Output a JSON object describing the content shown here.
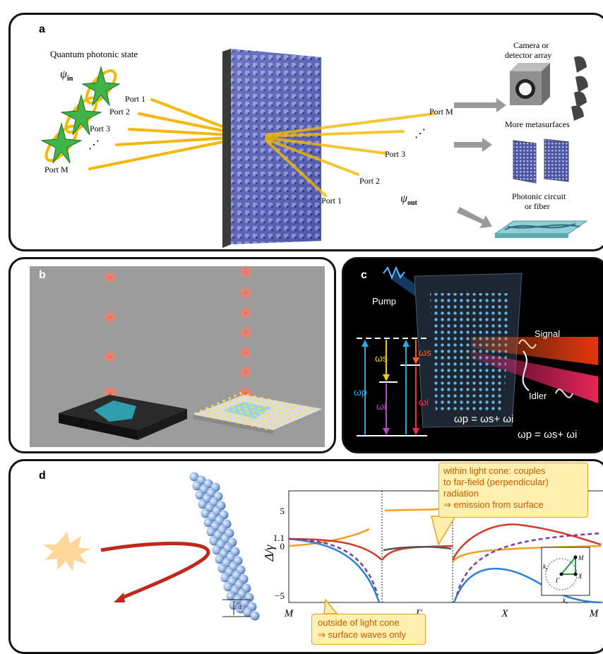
{
  "panel_a": {
    "label": "a",
    "quantum_state": "Quantum photonic state",
    "psi_in": "ψ",
    "psi_in_sub": "in",
    "ports_left": [
      "Port 1",
      "Port 2",
      "Port 3",
      "⋰",
      "Port M"
    ],
    "ports_right": [
      "Port M",
      "⋰",
      "Port 3",
      "Port 2",
      "Port 1"
    ],
    "psi_out": "ψ",
    "psi_out_sub": "out",
    "camera_label_1": "Camera or",
    "camera_label_2": "detector array",
    "more_metasurfaces": "More metasurfaces",
    "photonic_circuit_1": "Photonic circuit",
    "photonic_circuit_2": "or fiber"
  },
  "panel_b": {
    "label": "b"
  },
  "panel_c": {
    "label": "c",
    "pump": "Pump",
    "signal": "Signal",
    "idler": "Idler",
    "omega_p": "ωp",
    "omega_s": "ωs",
    "omega_i": "ωi",
    "equation_1": "ωp = ωs+ ωi",
    "equation_2": "ωp = ωs+ ωi"
  },
  "panel_d": {
    "label": "d",
    "lattice_label": "a",
    "callout_top": [
      "within light cone: couples",
      "to far-field (perpendicular)",
      "radiation",
      "⇒ emission from surface"
    ],
    "callout_bottom": [
      "outside of light cone",
      "⇒ surface waves only"
    ],
    "y_label": "Δ/γ",
    "y_ticks": [
      "5",
      "1.1",
      "0",
      "−5"
    ],
    "x_ticks": [
      "M",
      "Γ",
      "X",
      "M"
    ],
    "bz_labels": [
      "M",
      "Γ",
      "X",
      "k",
      "k"
    ],
    "bz_sub": [
      "y",
      "x"
    ]
  },
  "colors": {
    "beam": "#f5b800",
    "blue_curve": "#2f7fd0",
    "red_curve": "#d23a2a",
    "orange_curve": "#f0a020",
    "purple_dashed": "#7a3fa0",
    "callout_fill": "#fff0b0",
    "callout_stroke": "#f0a020"
  }
}
